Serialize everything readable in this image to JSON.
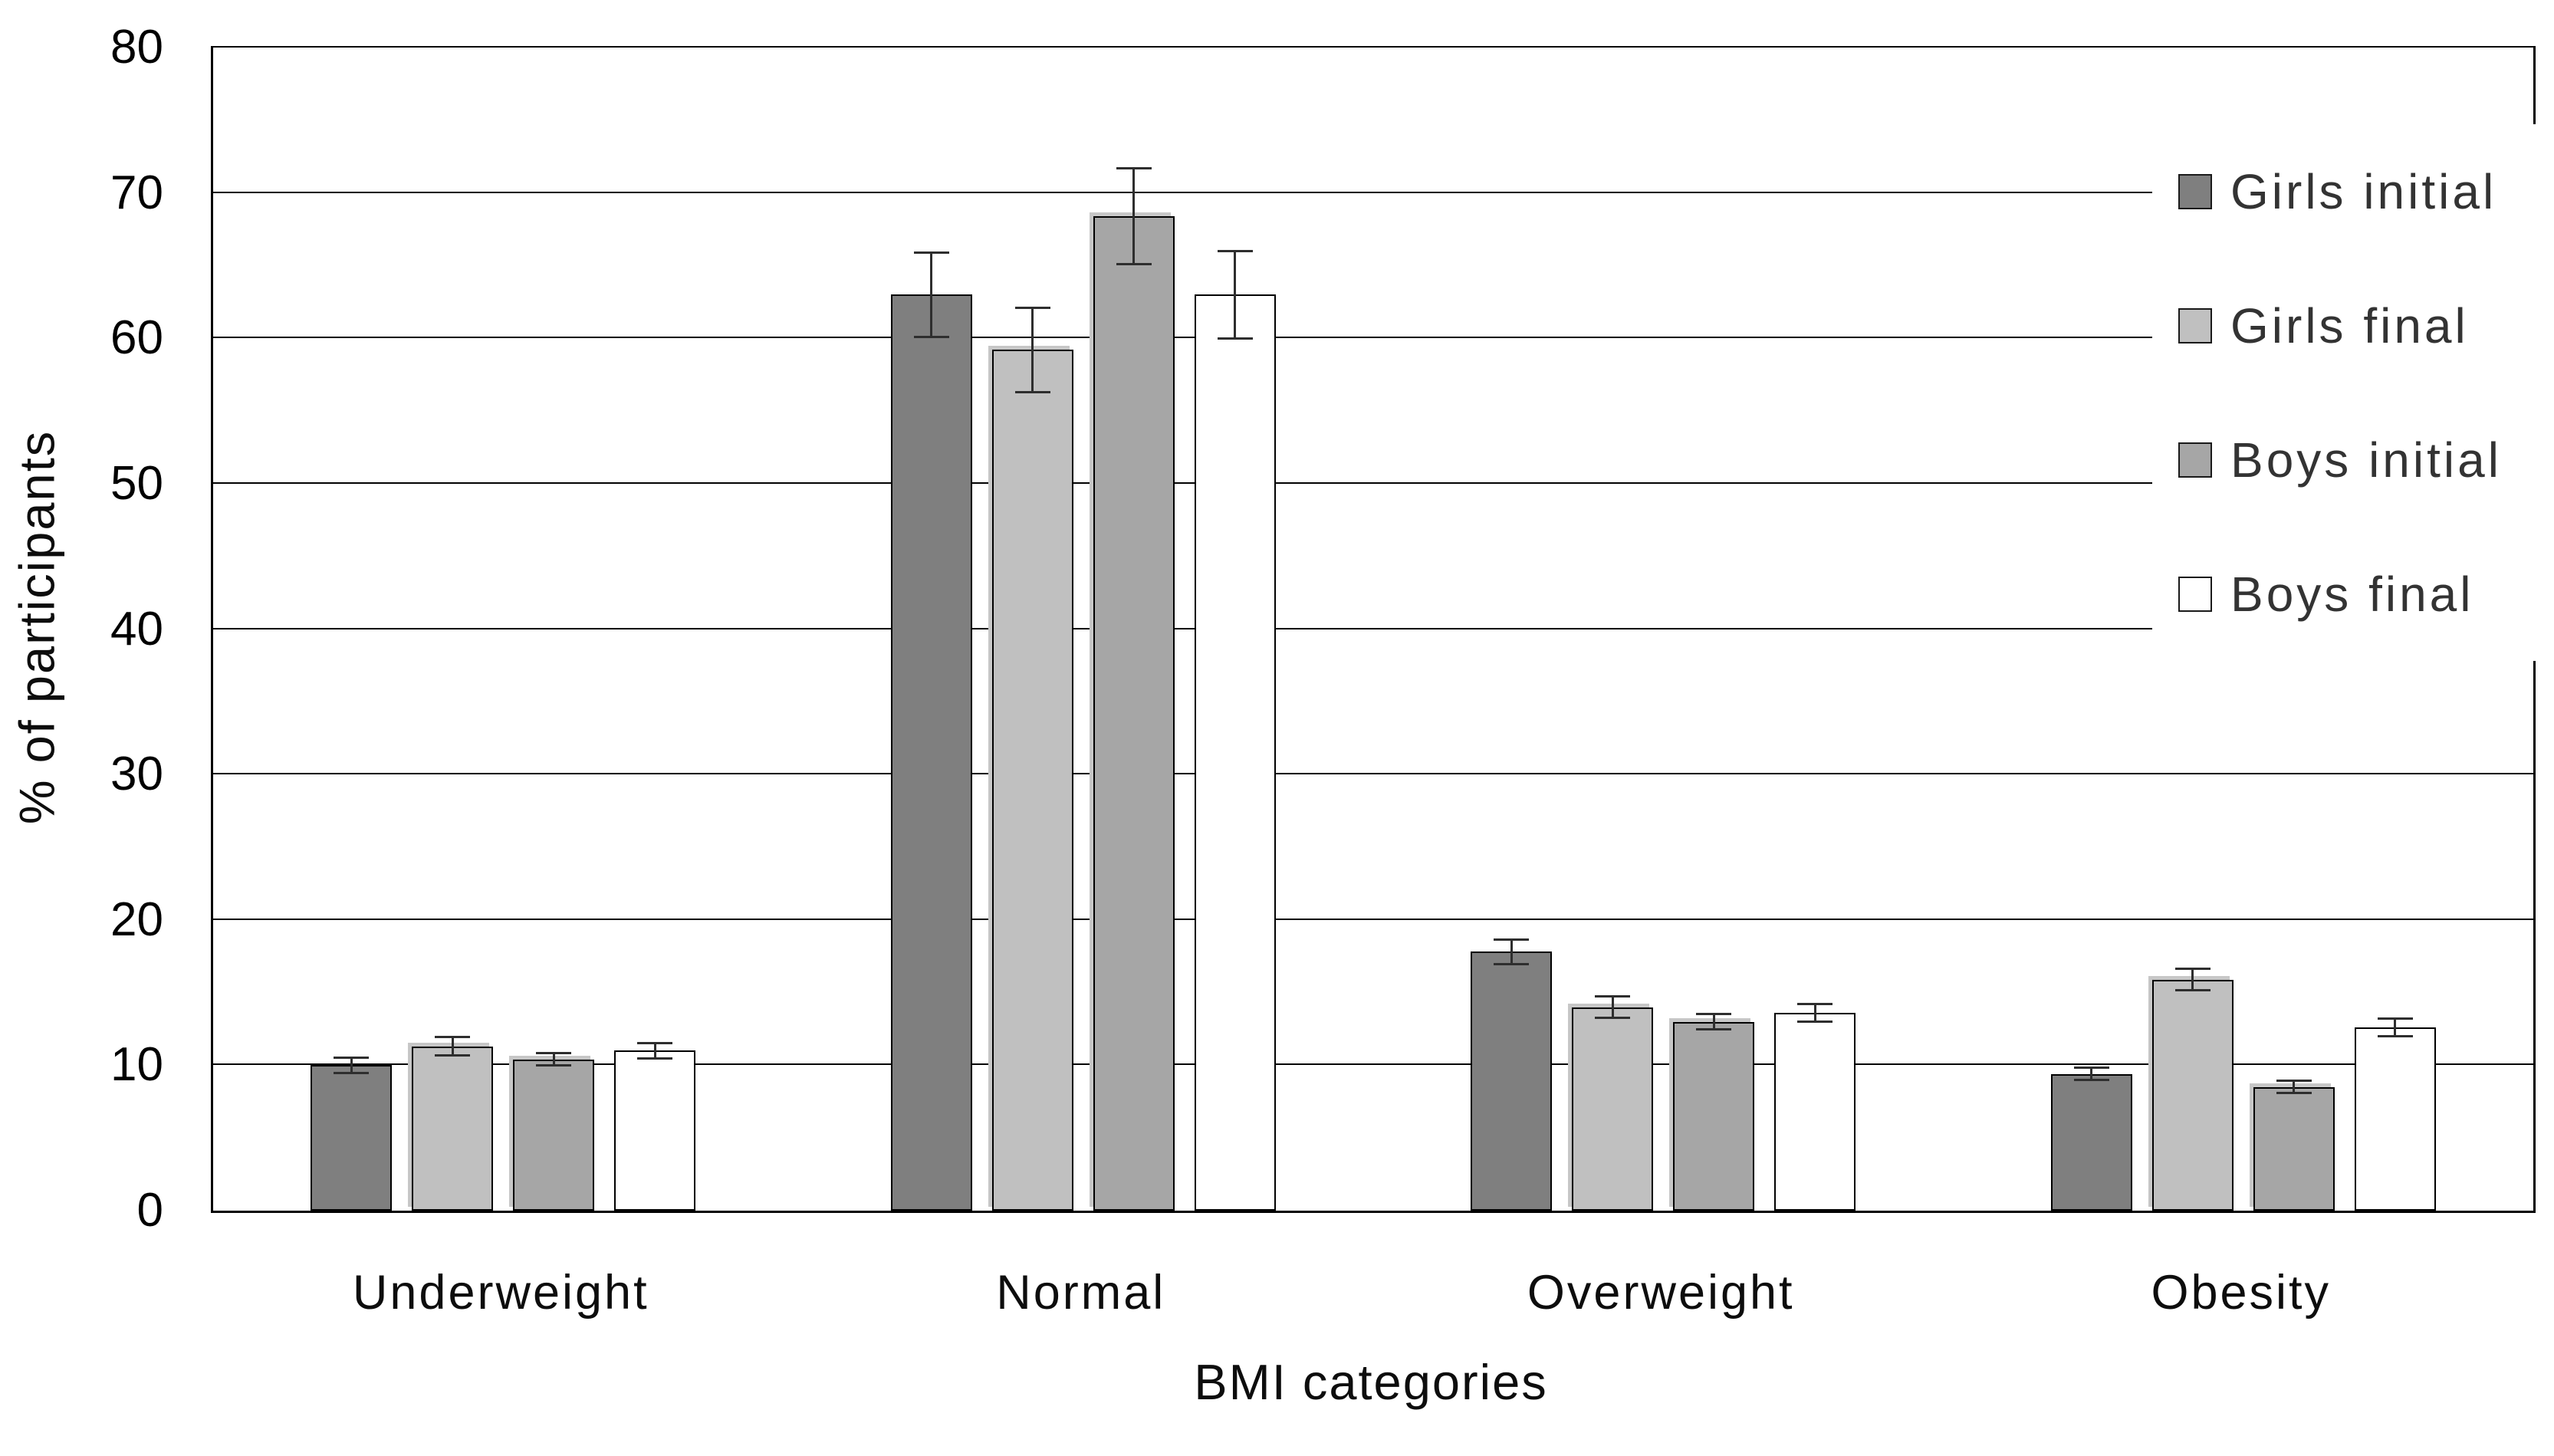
{
  "y_axis": {
    "title": "% of participants",
    "ticks": [
      0,
      10,
      20,
      30,
      40,
      50,
      60,
      70,
      80
    ]
  },
  "x_axis": {
    "title": "BMI categories"
  },
  "chart_data": {
    "type": "bar",
    "title": "",
    "xlabel": "BMI categories",
    "ylabel": "% of participants",
    "ylim": [
      0,
      80
    ],
    "ytick_step": 10,
    "grid": true,
    "legend_position": "top-right",
    "categories": [
      "Underweight",
      "Normal",
      "Overweight",
      "Obesity"
    ],
    "series": [
      {
        "name": "Girls initial",
        "fill": "#7f7f7f",
        "shadow": false,
        "values": [
          10.0,
          63.0,
          17.8,
          9.4
        ],
        "errors": [
          0.6,
          3.0,
          0.9,
          0.5
        ]
      },
      {
        "name": "Girls final",
        "fill": "#c0c0c0",
        "shadow": true,
        "values": [
          11.3,
          59.2,
          14.0,
          15.9
        ],
        "errors": [
          0.7,
          3.0,
          0.8,
          0.8
        ]
      },
      {
        "name": "Boys initial",
        "fill": "#a6a6a6",
        "shadow": true,
        "values": [
          10.4,
          68.4,
          13.0,
          8.5
        ],
        "errors": [
          0.5,
          3.4,
          0.6,
          0.5
        ]
      },
      {
        "name": "Boys final",
        "fill": "#ffffff",
        "shadow": false,
        "values": [
          11.0,
          63.0,
          13.6,
          12.6
        ],
        "errors": [
          0.6,
          3.1,
          0.7,
          0.7
        ]
      }
    ]
  }
}
